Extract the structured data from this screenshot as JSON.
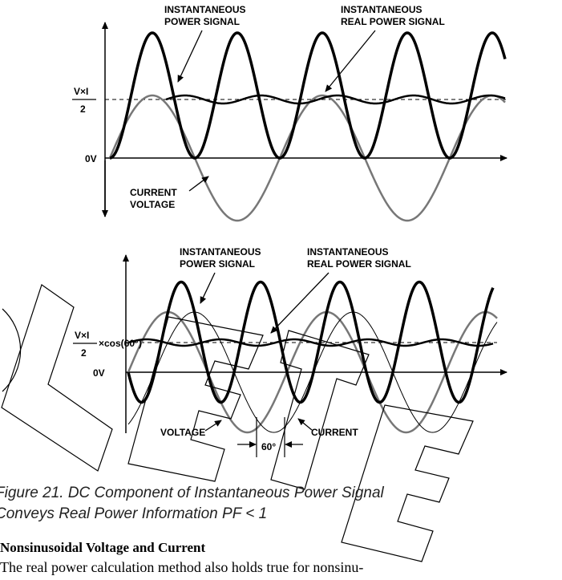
{
  "top_plot": {
    "label_power": [
      "INSTANTANEOUS",
      "POWER SIGNAL"
    ],
    "label_real": [
      "INSTANTANEOUS",
      "REAL POWER SIGNAL"
    ],
    "ylabel_num": "V×I",
    "ylabel_den": "2",
    "zero_label": "0V",
    "label_cv": [
      "CURRENT",
      "VOLTAGE"
    ]
  },
  "bottom_plot": {
    "label_power": [
      "INSTANTANEOUS",
      "POWER SIGNAL"
    ],
    "label_real": [
      "INSTANTANEOUS",
      "REAL POWER SIGNAL"
    ],
    "ylabel_num": "V×I",
    "ylabel_den": "2",
    "ylabel_suffix": "×cos(60°)",
    "zero_label": "0V",
    "voltage_label": "VOLTAGE",
    "current_label": "CURRENT",
    "phase_label": "60°"
  },
  "caption": {
    "line1": "Figure 21.  DC Component of Instantaneous Power Signal",
    "line2": "Conveys Real Power Information PF < 1"
  },
  "section": {
    "heading": "Nonsinusoidal Voltage and Current",
    "body": "The real power calculation method also holds true for nonsinu-"
  },
  "chart_data": {
    "type": "line",
    "phase_shift_deg": 60,
    "series": []
  }
}
